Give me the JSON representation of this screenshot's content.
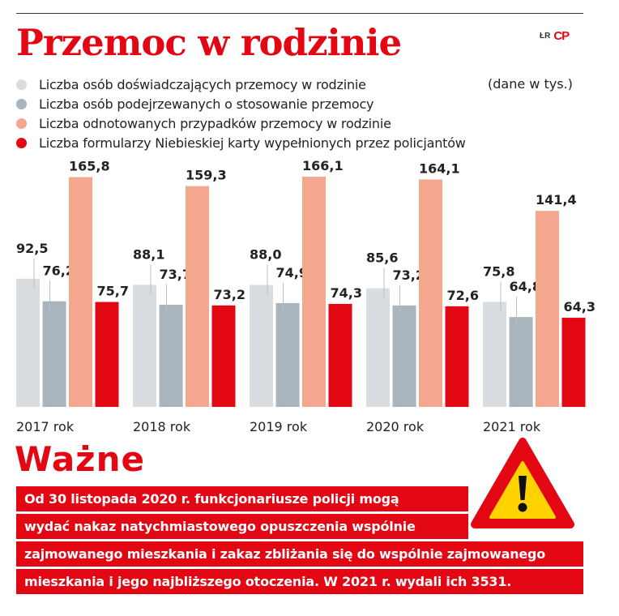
{
  "title": "Przemoc w rodzinie",
  "credit": {
    "text": "ŁR",
    "logo": "CP"
  },
  "units": "(dane w tys.)",
  "legend": [
    {
      "label": "Liczba osób doświadczających przemocy w rodzinie",
      "color": "#d9dde0"
    },
    {
      "label": "Liczba osób podejrzewanych o stosowanie przemocy",
      "color": "#a9b4bc"
    },
    {
      "label": "Liczba odnotowanych przypadków przemocy w rodzinie",
      "color": "#f2a78e"
    },
    {
      "label": "Liczba formularzy Niebieskiej karty wypełnionych przez policjantów",
      "color": "#e30613"
    }
  ],
  "chart_data": {
    "type": "bar",
    "categories": [
      "2017 rok",
      "2018 rok",
      "2019 rok",
      "2020 rok",
      "2021 rok"
    ],
    "series": [
      {
        "name": "Liczba osób doświadczających przemocy w rodzinie",
        "values": [
          92.5,
          88.1,
          88.0,
          85.6,
          75.8
        ],
        "labels": [
          "92,5",
          "88,1",
          "88,0",
          "85,6",
          "75,8"
        ],
        "color": "#d9dde0"
      },
      {
        "name": "Liczba osób podejrzewanych o stosowanie przemocy",
        "values": [
          76.2,
          73.7,
          74.9,
          73.2,
          64.8
        ],
        "labels": [
          "76,2",
          "73,7",
          "74,9",
          "73,2",
          "64,8"
        ],
        "color": "#a9b4bc"
      },
      {
        "name": "Liczba odnotowanych przypadków przemocy w rodzinie",
        "values": [
          165.8,
          159.3,
          166.1,
          164.1,
          141.4
        ],
        "labels": [
          "165,8",
          "159,3",
          "166,1",
          "164,1",
          "141,4"
        ],
        "color": "#f2a78e"
      },
      {
        "name": "Liczba formularzy Niebieskiej karty wypełnionych przez policjantów",
        "values": [
          75.7,
          73.2,
          74.3,
          72.6,
          64.3
        ],
        "labels": [
          "75,7",
          "73,2",
          "74,3",
          "72,6",
          "64,3"
        ],
        "color": "#e30613"
      }
    ],
    "ylim": [
      0,
      170
    ],
    "grid": false,
    "legend_position": "top-left",
    "unit_note": "(dane w tys.)"
  },
  "notice": {
    "heading": "Ważne",
    "icon": "warning-triangle-icon",
    "lines": [
      "Od 30 listopada 2020 r. funkcjonariusze policji mogą",
      "wydać nakaz natychmiastowego opuszczenia wspólnie",
      "zajmowanego mieszkania i zakaz zbliżania się do wspólnie zajmowanego",
      "mieszkania i jego najbliższego otoczenia. W 2021 r. wydali ich 3531."
    ]
  }
}
